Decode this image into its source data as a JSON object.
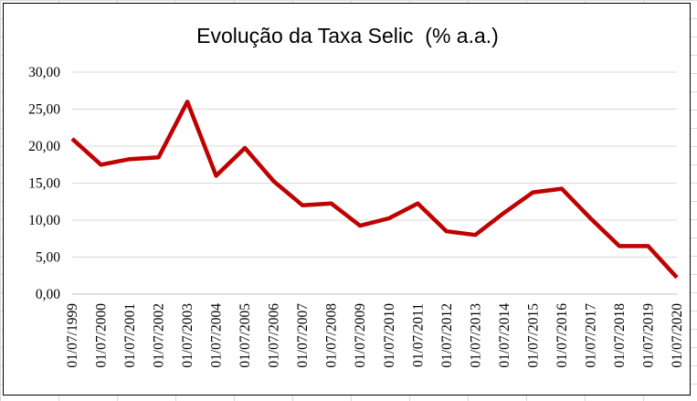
{
  "chart_data": {
    "type": "line",
    "title": "Evolução da Taxa Selic  (% a.a.)",
    "xlabel": "",
    "ylabel": "",
    "ylim": [
      0,
      30
    ],
    "yticks": [
      "0,00",
      "5,00",
      "10,00",
      "15,00",
      "20,00",
      "25,00",
      "30,00"
    ],
    "categories": [
      "01/07/1999",
      "01/07/2000",
      "01/07/2001",
      "01/07/2002",
      "01/07/2003",
      "01/07/2004",
      "01/07/2005",
      "01/07/2006",
      "01/07/2007",
      "01/07/2008",
      "01/07/2009",
      "01/07/2010",
      "01/07/2011",
      "01/07/2012",
      "01/07/2013",
      "01/07/2014",
      "01/07/2015",
      "01/07/2016",
      "01/07/2017",
      "01/07/2018",
      "01/07/2019",
      "01/07/2020"
    ],
    "series": [
      {
        "values": [
          21.0,
          17.5,
          18.25,
          18.5,
          26.0,
          16.0,
          19.75,
          15.25,
          12.0,
          12.25,
          9.25,
          10.25,
          12.25,
          8.5,
          8.0,
          11.0,
          13.75,
          14.25,
          10.25,
          6.5,
          6.5,
          2.25
        ],
        "color": "#c00000"
      }
    ],
    "grid": true,
    "legend": "none"
  }
}
